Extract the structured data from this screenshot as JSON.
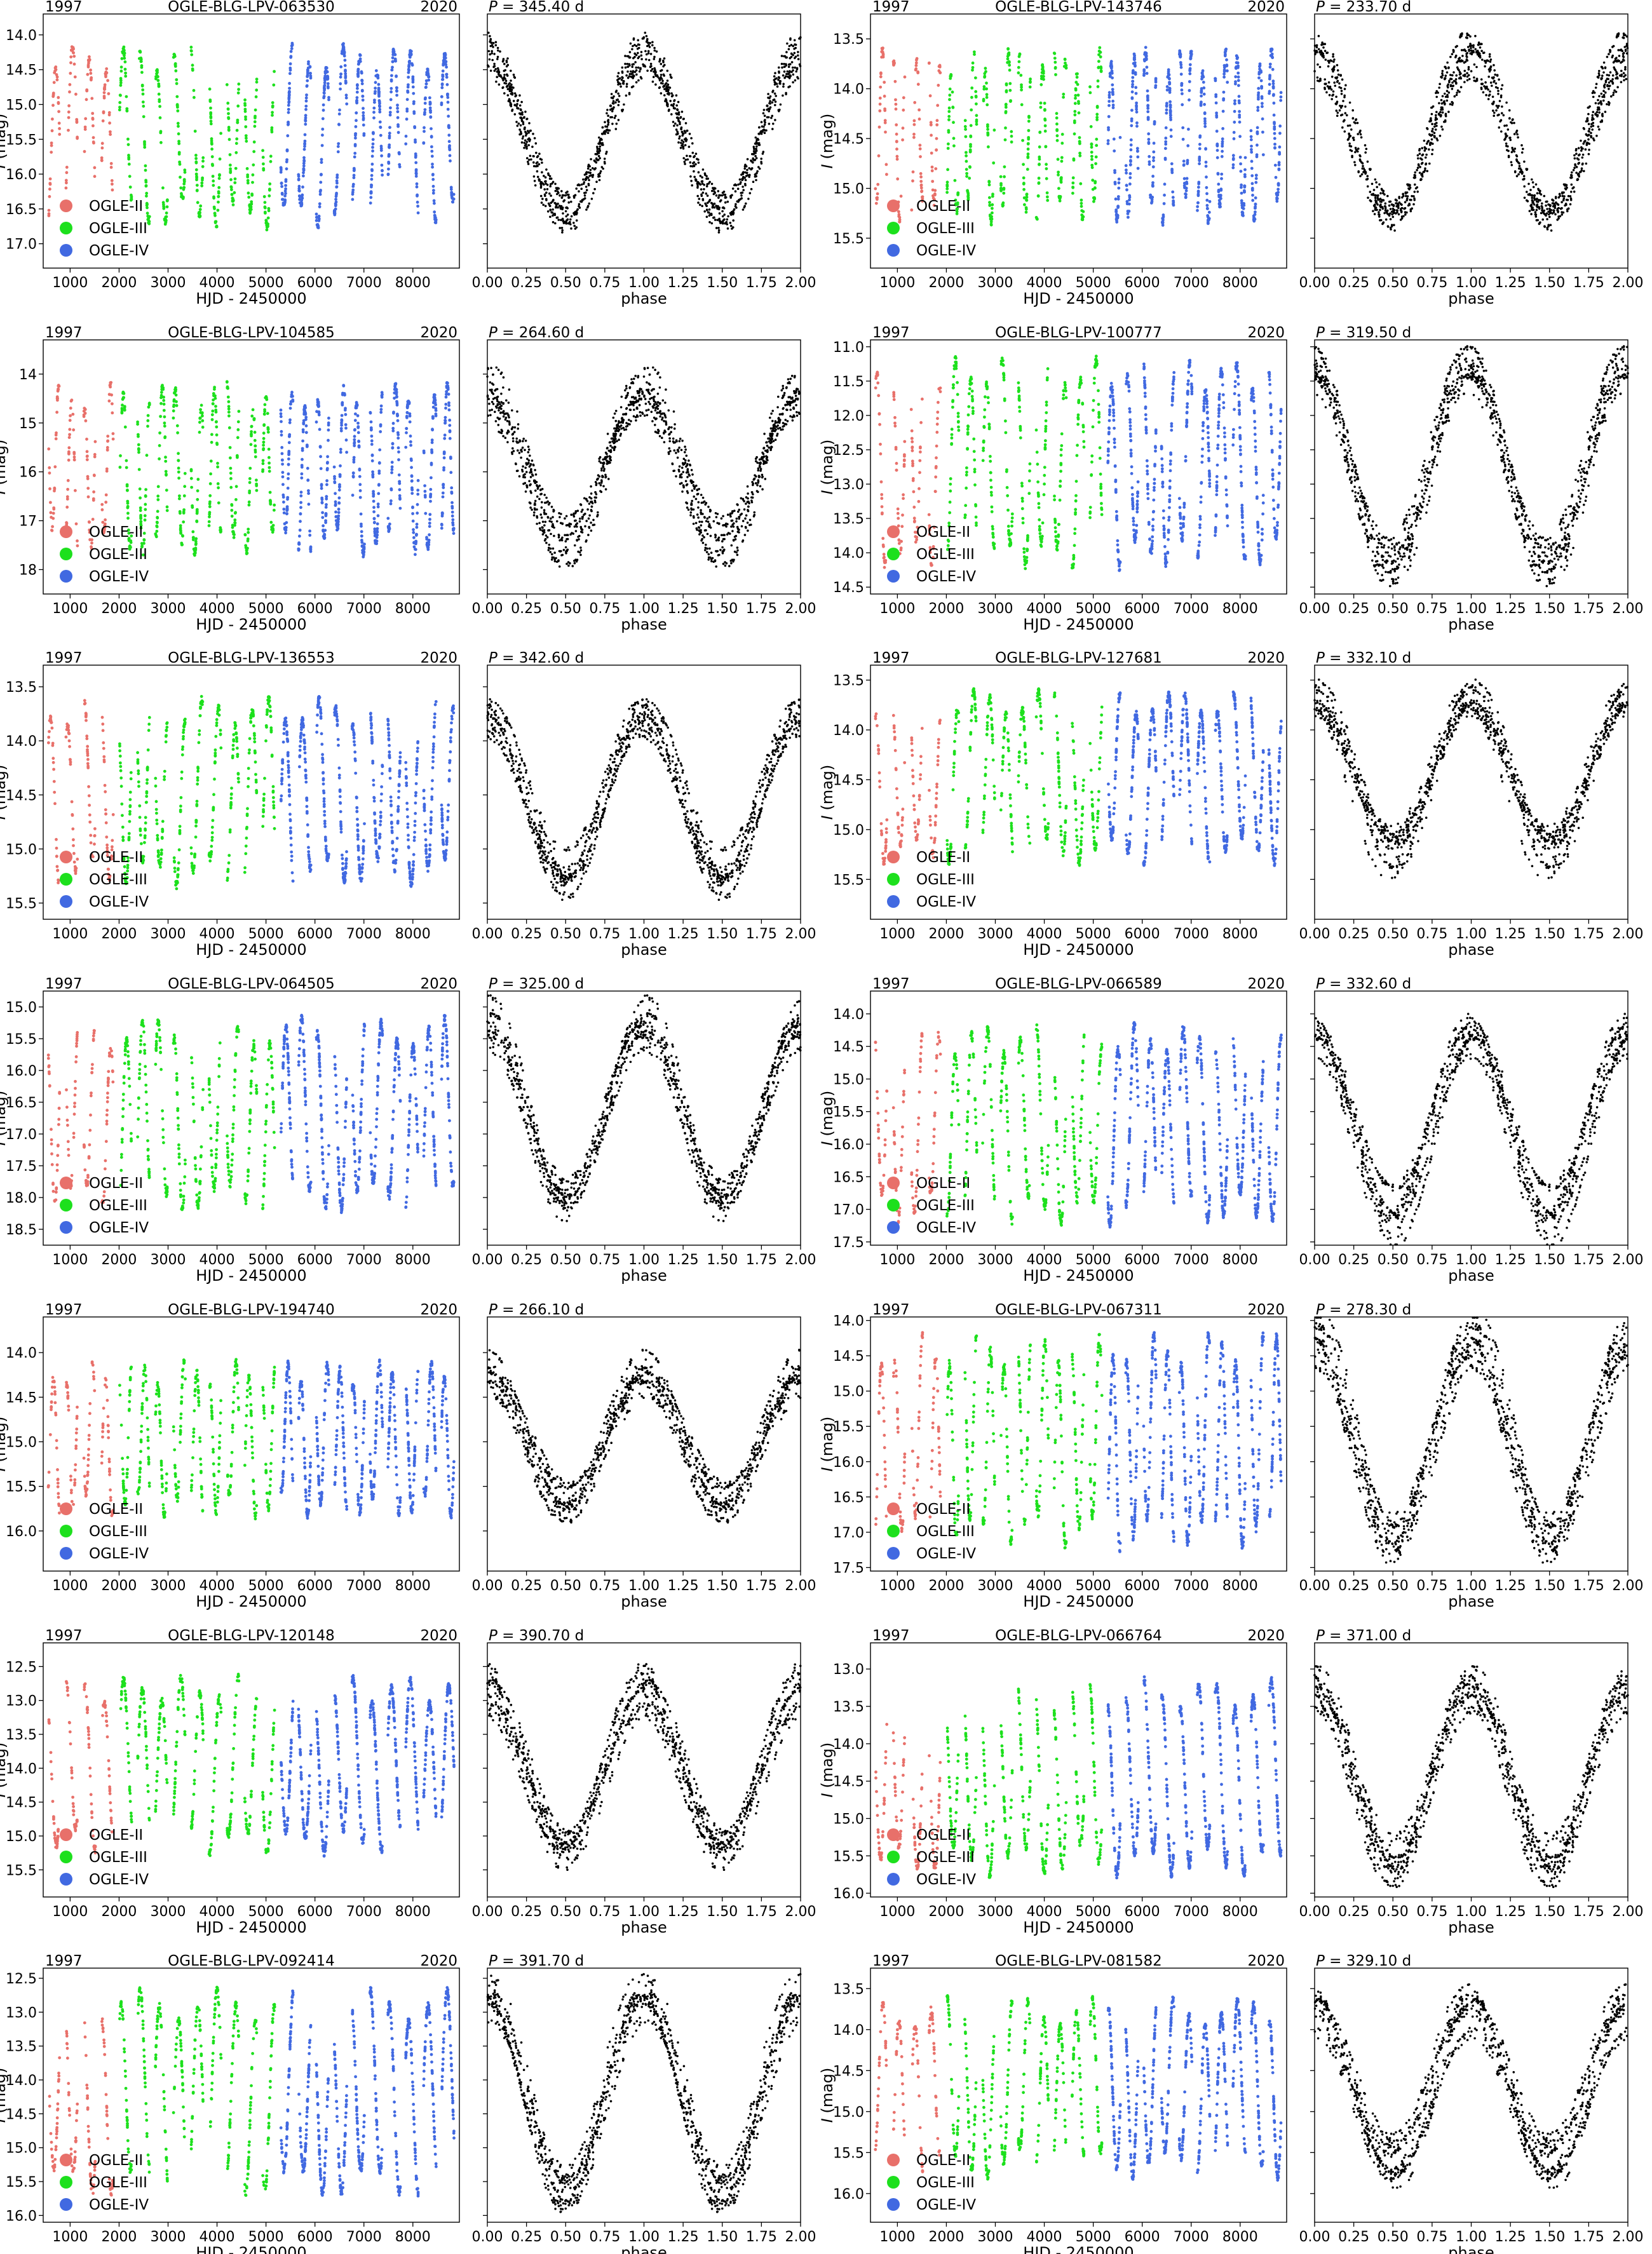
{
  "colors": {
    "OGLE-II": "#e8706a",
    "OGLE-III": "#1de01d",
    "OGLE-IV": "#4169e1",
    "phase": "#000000"
  },
  "common": {
    "ylabel_italic": "I",
    "ylabel_rest": " (mag)",
    "xlabel_lc": "HJD - 2450000",
    "xlabel_phase": "phase",
    "year_start": "1997",
    "year_end": "2020",
    "period_prefix": "P",
    "period_unit": "d",
    "legend": [
      "OGLE-II",
      "OGLE-III",
      "OGLE-IV"
    ],
    "lc_xticks": [
      1000,
      2000,
      3000,
      4000,
      5000,
      6000,
      7000,
      8000
    ],
    "lc_xlim": [
      450,
      8950
    ],
    "phase_xticks": [
      "0.00",
      "0.25",
      "0.50",
      "0.75",
      "1.00",
      "1.25",
      "1.50",
      "1.75",
      "2.00"
    ],
    "phase_xlim": [
      0,
      2
    ],
    "grid": false,
    "legend_position": "lower-left",
    "yaxis_inverted": true
  },
  "chart_data": [
    {
      "type": "scatter",
      "name": "OGLE-BLG-LPV-063530",
      "period": "345.40",
      "yticks": [
        "14.0",
        "14.5",
        "15.0",
        "15.5",
        "16.0",
        "16.5",
        "17.0"
      ],
      "ylim": [
        13.7,
        17.35
      ]
    },
    {
      "type": "scatter",
      "name": "OGLE-BLG-LPV-143746",
      "period": "233.70",
      "yticks": [
        "13.5",
        "14.0",
        "14.5",
        "15.0",
        "15.5"
      ],
      "ylim": [
        13.25,
        15.8
      ]
    },
    {
      "type": "scatter",
      "name": "OGLE-BLG-LPV-104585",
      "period": "264.60",
      "yticks": [
        "14",
        "15",
        "16",
        "17",
        "18"
      ],
      "ylim": [
        13.3,
        18.5
      ]
    },
    {
      "type": "scatter",
      "name": "OGLE-BLG-LPV-100777",
      "period": "319.50",
      "yticks": [
        "11.0",
        "11.5",
        "12.0",
        "12.5",
        "13.0",
        "13.5",
        "14.0",
        "14.5"
      ],
      "ylim": [
        10.9,
        14.6
      ]
    },
    {
      "type": "scatter",
      "name": "OGLE-BLG-LPV-136553",
      "period": "342.60",
      "yticks": [
        "13.5",
        "14.0",
        "14.5",
        "15.0",
        "15.5"
      ],
      "ylim": [
        13.3,
        15.65
      ]
    },
    {
      "type": "scatter",
      "name": "OGLE-BLG-LPV-127681",
      "period": "332.10",
      "yticks": [
        "13.5",
        "14.0",
        "14.5",
        "15.0",
        "15.5"
      ],
      "ylim": [
        13.35,
        15.9
      ]
    },
    {
      "type": "scatter",
      "name": "OGLE-BLG-LPV-064505",
      "period": "325.00",
      "yticks": [
        "15.0",
        "15.5",
        "16.0",
        "16.5",
        "17.0",
        "17.5",
        "18.0",
        "18.5"
      ],
      "ylim": [
        14.75,
        18.75
      ]
    },
    {
      "type": "scatter",
      "name": "OGLE-BLG-LPV-066589",
      "period": "332.60",
      "yticks": [
        "14.0",
        "14.5",
        "15.0",
        "15.5",
        "16.0",
        "16.5",
        "17.0",
        "17.5"
      ],
      "ylim": [
        13.65,
        17.55
      ]
    },
    {
      "type": "scatter",
      "name": "OGLE-BLG-LPV-194740",
      "period": "266.10",
      "yticks": [
        "14.0",
        "14.5",
        "15.0",
        "15.5",
        "16.0"
      ],
      "ylim": [
        13.6,
        16.45
      ]
    },
    {
      "type": "scatter",
      "name": "OGLE-BLG-LPV-067311",
      "period": "278.30",
      "yticks": [
        "14.0",
        "14.5",
        "15.0",
        "15.5",
        "16.0",
        "16.5",
        "17.0",
        "17.5"
      ],
      "ylim": [
        13.95,
        17.55
      ]
    },
    {
      "type": "scatter",
      "name": "OGLE-BLG-LPV-120148",
      "period": "390.70",
      "yticks": [
        "12.5",
        "13.0",
        "13.5",
        "14.0",
        "14.5",
        "15.0",
        "15.5"
      ],
      "ylim": [
        12.15,
        15.9
      ]
    },
    {
      "type": "scatter",
      "name": "OGLE-BLG-LPV-066764",
      "period": "371.00",
      "yticks": [
        "13.0",
        "13.5",
        "14.0",
        "14.5",
        "15.0",
        "15.5",
        "16.0"
      ],
      "ylim": [
        12.65,
        16.05
      ]
    },
    {
      "type": "scatter",
      "name": "OGLE-BLG-LPV-092414",
      "period": "391.70",
      "yticks": [
        "12.5",
        "13.0",
        "13.5",
        "14.0",
        "14.5",
        "15.0",
        "15.5",
        "16.0"
      ],
      "ylim": [
        12.35,
        16.1
      ]
    },
    {
      "type": "scatter",
      "name": "OGLE-BLG-LPV-081582",
      "period": "329.10",
      "yticks": [
        "13.5",
        "14.0",
        "14.5",
        "15.0",
        "15.5",
        "16.0"
      ],
      "ylim": [
        13.25,
        16.35
      ]
    }
  ]
}
